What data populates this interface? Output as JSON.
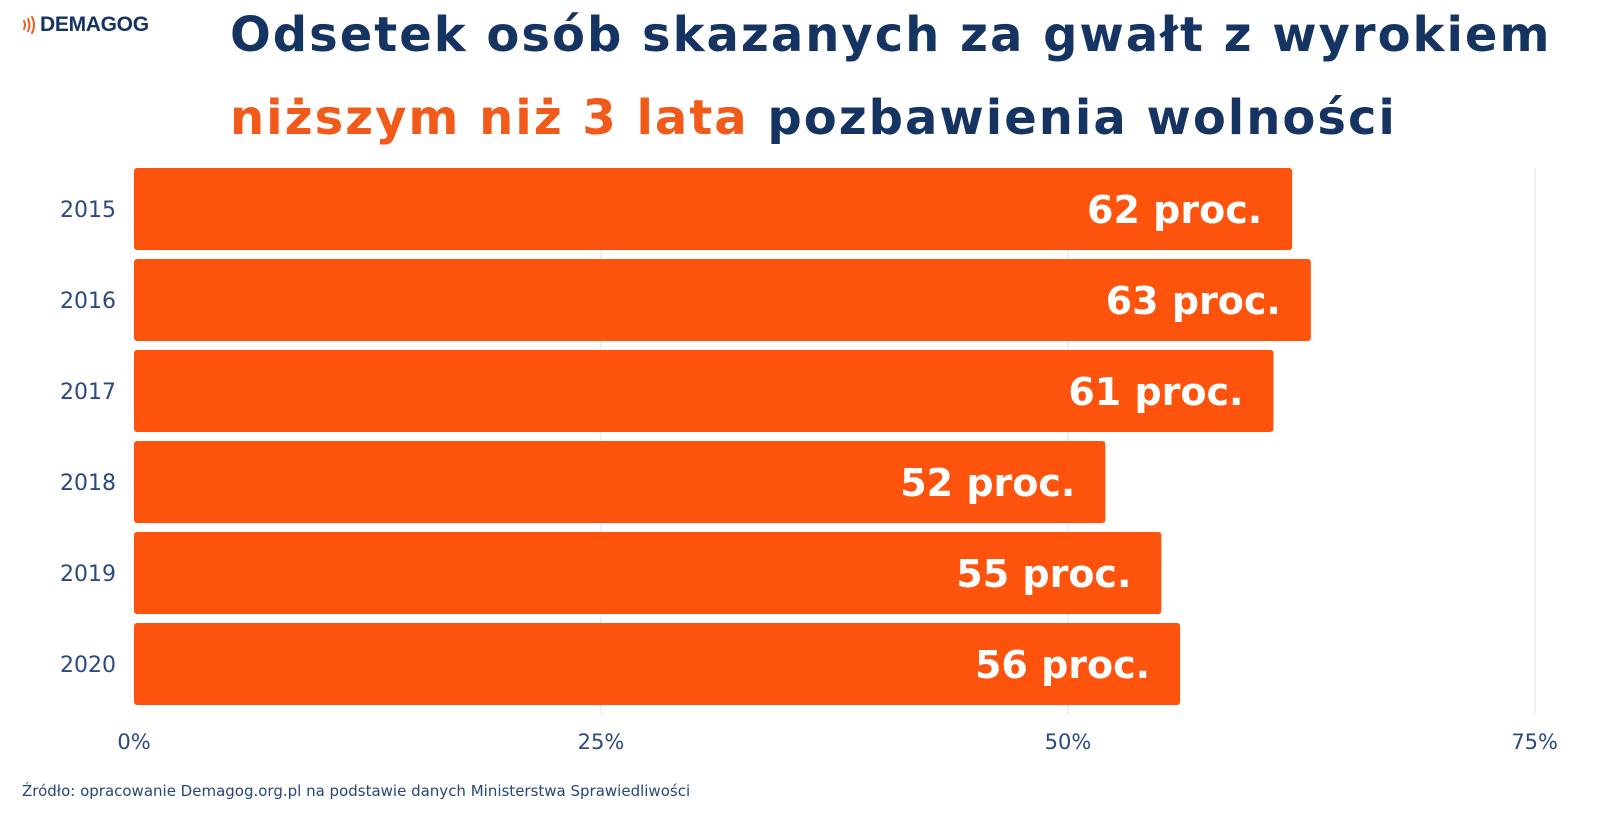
{
  "logo": {
    "text": "DEMAGOG"
  },
  "title": {
    "line1": "Odsetek osób skazanych za gwałt z wyrokiem",
    "line2_highlight": "niższym niż 3 lata",
    "line2_rest": " pozbawienia wolności"
  },
  "source": "Źródło: opracowanie Demagog.org.pl na podstawie danych Ministerstwa Sprawiedliwości",
  "colors": {
    "bar": "#fd530c",
    "title": "#163462",
    "accent": "#f25a1a",
    "axis_text": "#2c4a80",
    "grid": "#dde2ee"
  },
  "chart_data": {
    "type": "bar",
    "orientation": "horizontal",
    "categories": [
      "2015",
      "2016",
      "2017",
      "2018",
      "2019",
      "2020"
    ],
    "values": [
      62,
      63,
      61,
      52,
      55,
      56
    ],
    "data_labels": [
      "62 proc.",
      "63 proc.",
      "61 proc.",
      "52 proc.",
      "55 proc.",
      "56 proc."
    ],
    "xlim": [
      0,
      75
    ],
    "xticks": [
      0,
      25,
      50,
      75
    ],
    "xtick_labels": [
      "0%",
      "25%",
      "50%",
      "75%"
    ],
    "grid": true,
    "legend": "none"
  }
}
